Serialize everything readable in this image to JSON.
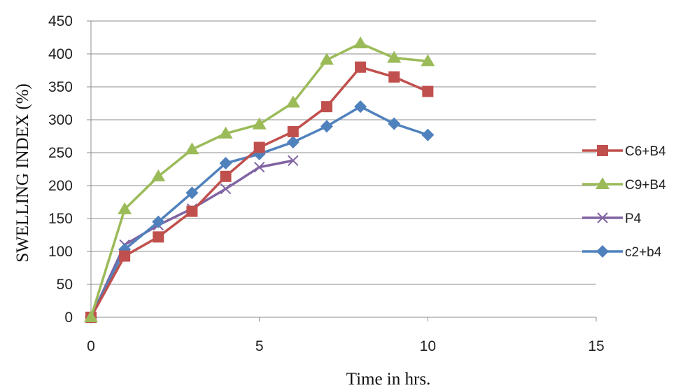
{
  "chart_data": {
    "type": "line",
    "title": "",
    "xlabel": "Time in hrs.",
    "ylabel": "SWELLING INDEX  (%)",
    "xlim": [
      0,
      15
    ],
    "ylim": [
      0,
      450
    ],
    "xticks": [
      0,
      5,
      10,
      15
    ],
    "yticks": [
      0,
      50,
      100,
      150,
      200,
      250,
      300,
      350,
      400,
      450
    ],
    "grid": "horizontal",
    "legend_position": "right",
    "series": [
      {
        "name": "C6+B4",
        "color": "#c0504d",
        "marker": "square",
        "x": [
          0,
          1,
          2,
          3,
          4,
          5,
          6,
          7,
          8,
          9,
          10
        ],
        "y": [
          0,
          93,
          122,
          161,
          214,
          258,
          282,
          320,
          380,
          365,
          343
        ]
      },
      {
        "name": "C9+B4",
        "color": "#9bbb59",
        "marker": "triangle",
        "x": [
          0,
          1,
          2,
          3,
          4,
          5,
          6,
          7,
          8,
          9,
          10
        ],
        "y": [
          0,
          164,
          214,
          255,
          279,
          293,
          326,
          391,
          416,
          394,
          389
        ]
      },
      {
        "name": "P4",
        "color": "#8064a2",
        "marker": "x",
        "x": [
          0,
          1,
          2,
          3,
          4,
          5,
          6
        ],
        "y": [
          0,
          110,
          140,
          165,
          195,
          228,
          238
        ]
      },
      {
        "name": "c2+b4",
        "color": "#4f81bd",
        "marker": "diamond",
        "x": [
          0,
          1,
          2,
          3,
          4,
          5,
          6,
          7,
          8,
          9,
          10
        ],
        "y": [
          0,
          103,
          145,
          189,
          234,
          248,
          266,
          290,
          320,
          294,
          277
        ]
      }
    ]
  }
}
